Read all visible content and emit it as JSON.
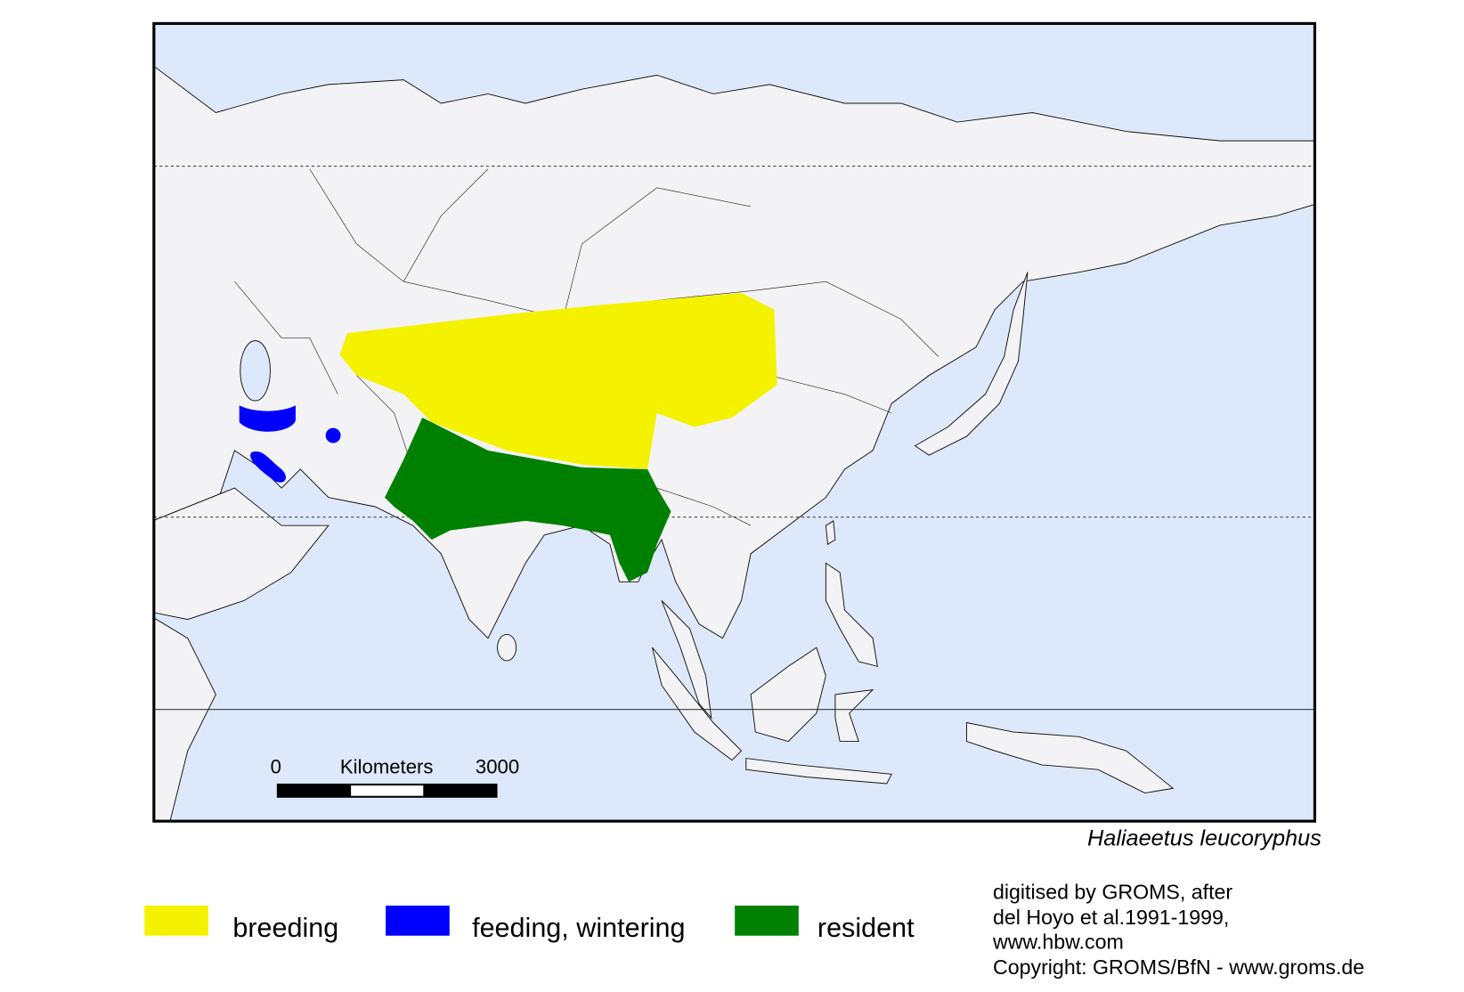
{
  "map": {
    "species": "Haliaeetus leucoryphus",
    "scale_bar": {
      "start": 0,
      "unit": "Kilometers",
      "end": 3000
    },
    "legend": [
      {
        "label": "breeding",
        "color": "#f5f200"
      },
      {
        "label": "feeding, wintering",
        "color": "#0000ff"
      },
      {
        "label": "resident",
        "color": "#008000"
      }
    ],
    "credits": [
      "digitised by GROMS, after",
      "del Hoyo et al.1991-1999,",
      "www.hbw.com",
      "Copyright: GROMS/BfN - www.groms.de"
    ]
  }
}
